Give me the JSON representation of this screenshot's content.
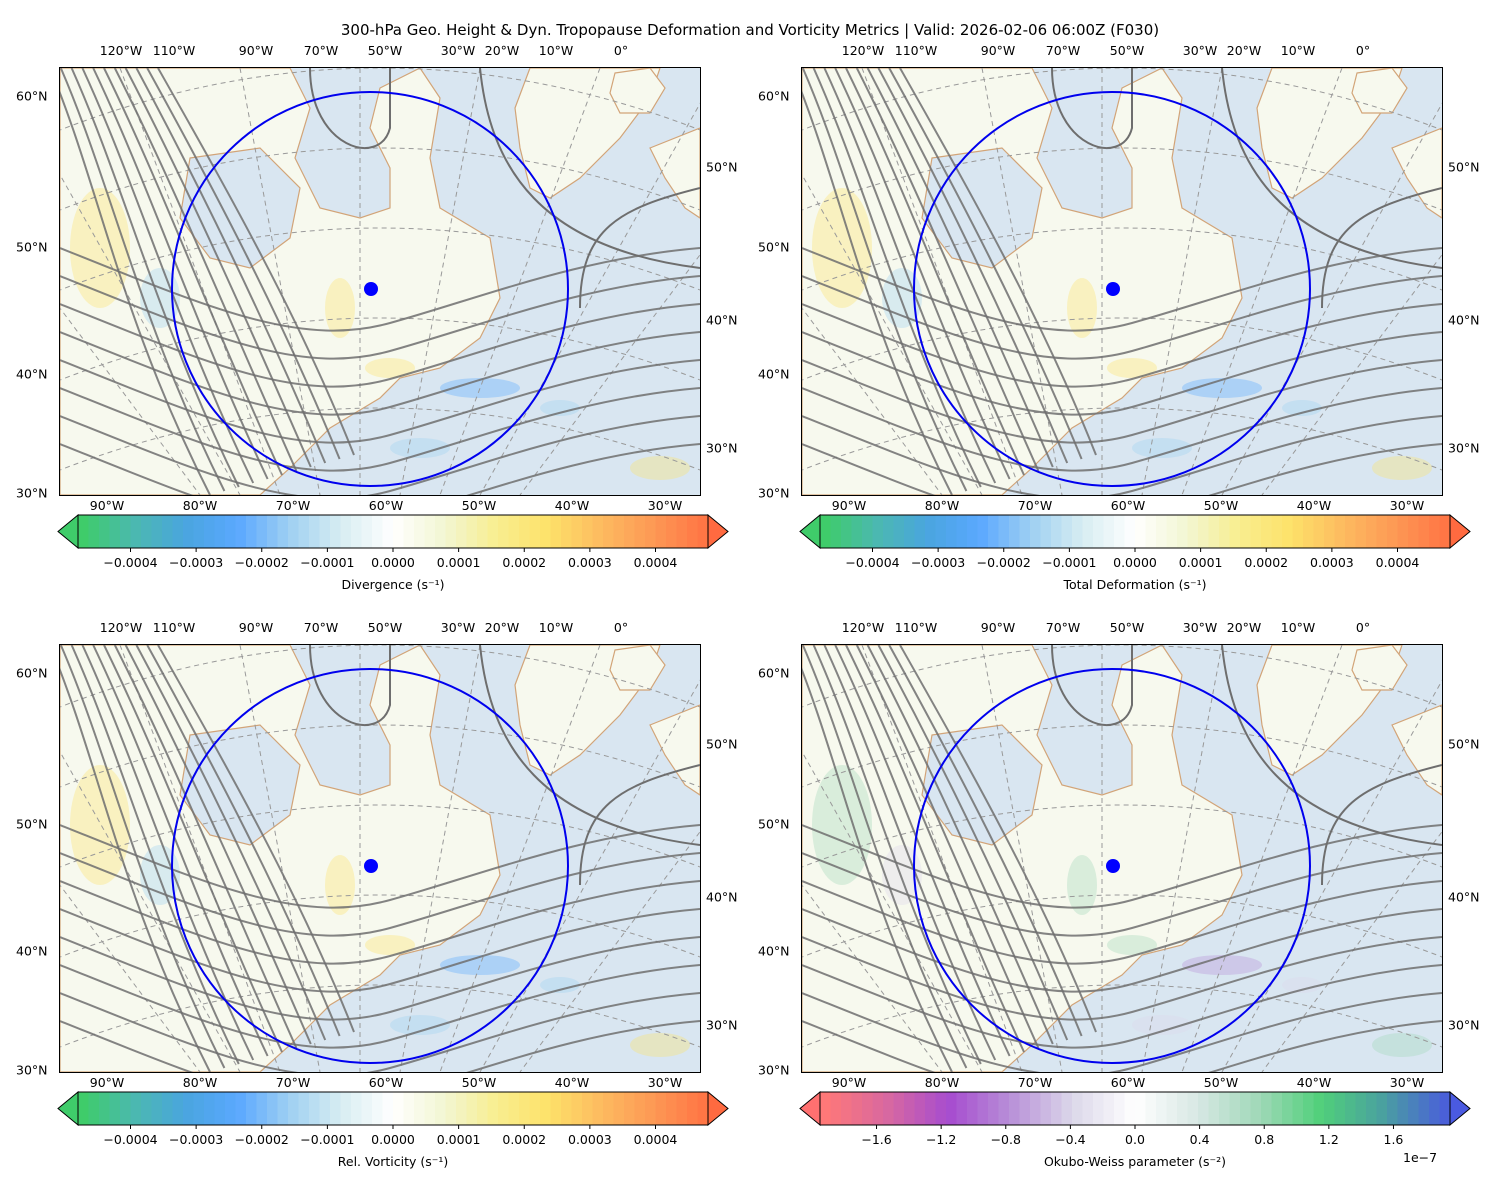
{
  "figure": {
    "title": "300-hPa Geo. Height & Dyn. Tropopause Deformation and Vorticity Metrics |  Valid: 2026-02-06 06:00Z (F030)"
  },
  "panels": [
    {
      "id": "divergence",
      "top_lon_labels": [
        "120°W",
        "110°W",
        "90°W",
        "70°W",
        "50°W",
        "30°W",
        "20°W",
        "10°W",
        "0°"
      ],
      "bottom_lon_labels": [
        "90°W",
        "80°W",
        "70°W",
        "60°W",
        "50°W",
        "40°W",
        "30°W"
      ],
      "left_lat_labels": [
        "60°N",
        "50°N",
        "40°N",
        "30°N"
      ],
      "right_lat_labels": [
        "50°N",
        "40°N",
        "30°N"
      ],
      "colorbar": {
        "label": "Divergence (s⁻¹)",
        "ticks": [
          "−0.0004",
          "−0.0003",
          "−0.0002",
          "−0.0001",
          "0.0000",
          "0.0001",
          "0.0002",
          "0.0003",
          "0.0004"
        ],
        "tick_values": [
          -0.0004,
          -0.0003,
          -0.0002,
          -0.0001,
          0,
          0.0001,
          0.0002,
          0.0003,
          0.0004
        ],
        "range": [
          -0.00048,
          0.00048
        ],
        "offset": "",
        "colors": [
          "#3fcc6a",
          "#4bb8b0",
          "#4aa5e0",
          "#5aa8ff",
          "#9fd0f2",
          "#d8eef2",
          "#ffffff",
          "#f2f6d2",
          "#f8ee90",
          "#fde26a",
          "#fdbc60",
          "#fd9a55",
          "#ff7645"
        ],
        "extend": "both",
        "min_ext_color": "#3fcc6a",
        "max_ext_color": "#ff6a40"
      },
      "field_tint": "#e8f1f6"
    },
    {
      "id": "total-deformation",
      "top_lon_labels": [
        "120°W",
        "110°W",
        "90°W",
        "70°W",
        "50°W",
        "30°W",
        "20°W",
        "10°W",
        "0°"
      ],
      "bottom_lon_labels": [
        "90°W",
        "80°W",
        "70°W",
        "60°W",
        "50°W",
        "40°W",
        "30°W"
      ],
      "left_lat_labels": [
        "60°N",
        "50°N",
        "40°N",
        "30°N"
      ],
      "right_lat_labels": [
        "50°N",
        "40°N",
        "30°N"
      ],
      "colorbar": {
        "label": "Total Deformation (s⁻¹)",
        "ticks": [
          "−0.0004",
          "−0.0003",
          "−0.0002",
          "−0.0001",
          "0.0000",
          "0.0001",
          "0.0002",
          "0.0003",
          "0.0004"
        ],
        "tick_values": [
          -0.0004,
          -0.0003,
          -0.0002,
          -0.0001,
          0,
          0.0001,
          0.0002,
          0.0003,
          0.0004
        ],
        "range": [
          -0.00048,
          0.00048
        ],
        "offset": "",
        "colors": [
          "#3fcc6a",
          "#4bb8b0",
          "#4aa5e0",
          "#5aa8ff",
          "#9fd0f2",
          "#d8eef2",
          "#ffffff",
          "#f2f6d2",
          "#f8ee90",
          "#fde26a",
          "#fdbc60",
          "#fd9a55",
          "#ff7645"
        ],
        "extend": "both",
        "min_ext_color": "#3fcc6a",
        "max_ext_color": "#ff6a40"
      },
      "field_tint": "#eef2d8"
    },
    {
      "id": "relative-vorticity",
      "top_lon_labels": [
        "120°W",
        "110°W",
        "90°W",
        "70°W",
        "50°W",
        "30°W",
        "20°W",
        "10°W",
        "0°"
      ],
      "bottom_lon_labels": [
        "90°W",
        "80°W",
        "70°W",
        "60°W",
        "50°W",
        "40°W",
        "30°W"
      ],
      "left_lat_labels": [
        "60°N",
        "50°N",
        "40°N",
        "30°N"
      ],
      "right_lat_labels": [
        "50°N",
        "40°N",
        "30°N"
      ],
      "colorbar": {
        "label": "Rel. Vorticity (s⁻¹)",
        "ticks": [
          "−0.0004",
          "−0.0003",
          "−0.0002",
          "−0.0001",
          "0.0000",
          "0.0001",
          "0.0002",
          "0.0003",
          "0.0004"
        ],
        "tick_values": [
          -0.0004,
          -0.0003,
          -0.0002,
          -0.0001,
          0,
          0.0001,
          0.0002,
          0.0003,
          0.0004
        ],
        "range": [
          -0.00048,
          0.00048
        ],
        "offset": "",
        "colors": [
          "#3fcc6a",
          "#4bb8b0",
          "#4aa5e0",
          "#5aa8ff",
          "#9fd0f2",
          "#d8eef2",
          "#ffffff",
          "#f2f6d2",
          "#f8ee90",
          "#fde26a",
          "#fdbc60",
          "#fd9a55",
          "#ff7645"
        ],
        "extend": "both",
        "min_ext_color": "#3fcc6a",
        "max_ext_color": "#ff6a40"
      },
      "field_tint": "#e4eef6"
    },
    {
      "id": "okubo-weiss",
      "top_lon_labels": [
        "120°W",
        "110°W",
        "90°W",
        "70°W",
        "50°W",
        "30°W",
        "20°W",
        "10°W",
        "0°"
      ],
      "bottom_lon_labels": [
        "90°W",
        "80°W",
        "70°W",
        "60°W",
        "50°W",
        "40°W",
        "30°W"
      ],
      "left_lat_labels": [
        "60°N",
        "50°N",
        "40°N",
        "30°N"
      ],
      "right_lat_labels": [
        "50°N",
        "40°N",
        "30°N"
      ],
      "colorbar": {
        "label": "Okubo-Weiss parameter (s⁻²)",
        "ticks": [
          "−1.6",
          "−1.2",
          "−0.8",
          "−0.4",
          "0.0",
          "0.4",
          "0.8",
          "1.2",
          "1.6"
        ],
        "tick_values": [
          -1.6,
          -1.2,
          -0.8,
          -0.4,
          0,
          0.4,
          0.8,
          1.2,
          1.6
        ],
        "range": [
          -1.95,
          1.95
        ],
        "offset": "1e−7",
        "colors": [
          "#ff7878",
          "#d868a0",
          "#a64ccf",
          "#b890d8",
          "#dcd8ea",
          "#ffffff",
          "#d8e8e4",
          "#a0d8b8",
          "#50d07a",
          "#4aa0a0",
          "#4a60d8"
        ],
        "extend": "both",
        "min_ext_color": "#ff7070",
        "max_ext_color": "#4a5ae0"
      },
      "field_tint": "#e4e8f4"
    }
  ],
  "map_common": {
    "projection": "polar stereographic (North Atlantic / eastern Canada)",
    "contour_field": "300-hPa geopotential height",
    "contour_color": "#6e6e6e",
    "coastline_color": "#d2a478",
    "gridline_color": "#999999",
    "circle_color": "#0000ee",
    "center_marker_color": "#0000ff",
    "ocean_color": "#d9e6f1",
    "land_color": "#f7f9ee"
  }
}
